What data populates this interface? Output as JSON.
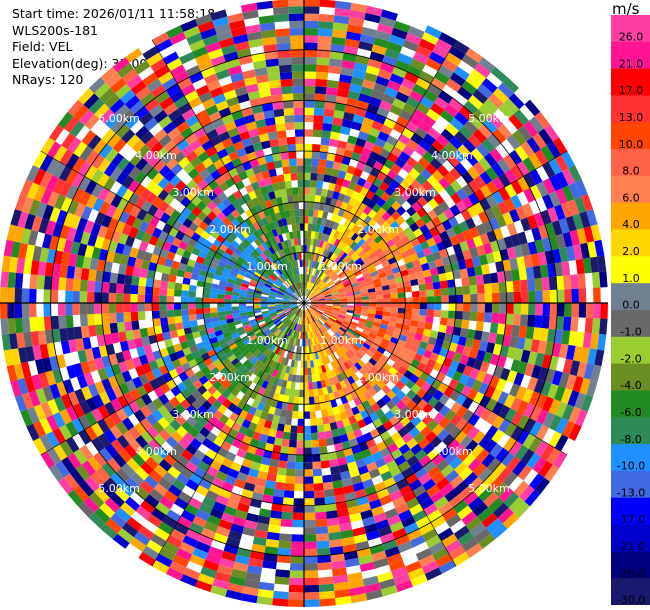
{
  "info": {
    "start_time": "Start time: 2026/01/11 11:58:18",
    "site": "WLS200s-181",
    "field": "Field: VEL",
    "elevation": "Elevation(deg): 35.00",
    "nrays": "NRays: 120"
  },
  "chart_data": {
    "type": "heatmap",
    "projection": "polar-ppi",
    "field": "VEL",
    "nrays": 120,
    "max_range_km": 6.0,
    "ring_labels": [
      "1.00km",
      "2.00km",
      "3.00km",
      "4.00km",
      "5.00km"
    ],
    "colorbar": {
      "unit": "m/s",
      "ticks": [
        "26.0",
        "21.0",
        "17.0",
        "13.0",
        "10.0",
        "8.0",
        "6.0",
        "4.0",
        "2.0",
        "1.0",
        "0.0",
        "-1.0",
        "-2.0",
        "-4.0",
        "-6.0",
        "-8.0",
        "-10.0",
        "-13.0",
        "-17.0",
        "-21.0",
        "-26.0",
        "-30.0"
      ],
      "colors": [
        "#ff3ea4",
        "#ff1493",
        "#ff0000",
        "#ff3333",
        "#ff4500",
        "#ff6347",
        "#ff7f50",
        "#ffa500",
        "#ffd700",
        "#ffff00",
        "#708090",
        "#696969",
        "#9acd32",
        "#6b8e23",
        "#228b22",
        "#2e8b57",
        "#1e90ff",
        "#4169e1",
        "#0000ff",
        "#0000cd",
        "#000080",
        "#191970"
      ]
    },
    "pattern_note": "near range: coherent positive/negative lobes; far range: noise"
  }
}
